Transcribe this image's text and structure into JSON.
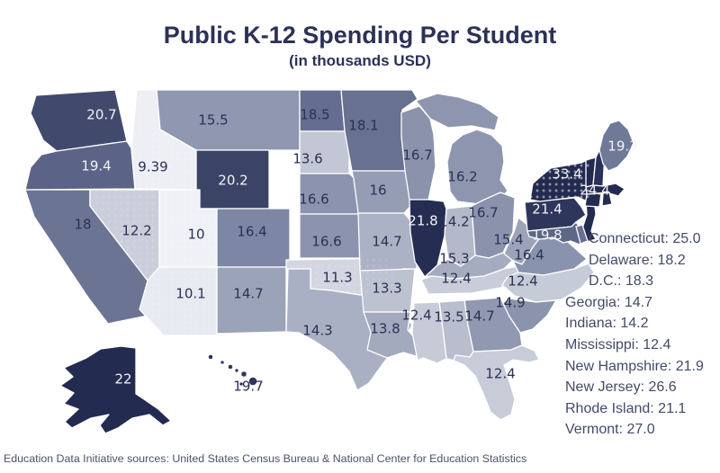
{
  "title": "Public K-12 Spending Per Student",
  "subtitle": "(in thousands USD)",
  "source": "Education Data Initiative sources: United States Census Bureau & National Center for Education Statistics",
  "colors": {
    "background": "#ffffff",
    "title_text": "#2c3157",
    "dark_label_text": "#2b3154",
    "light_label_text": "#f2f3f8",
    "list_text": "#434a69",
    "scale_low": "#edeff5",
    "scale_high": "#232a4f",
    "state_border": "#ffffff"
  },
  "chart_data": {
    "type": "choropleth",
    "title": "Public K-12 Spending Per Student",
    "subtitle": "(in thousands USD)",
    "unit": "thousands USD",
    "legend_position": "right-list for small states",
    "states": [
      {
        "abbr": "WA",
        "name": "Washington",
        "value": 20.7,
        "text": "20.7",
        "fill": "#414a6c",
        "text_fill": "#f2f3f8"
      },
      {
        "abbr": "OR",
        "name": "Oregon",
        "value": 19.4,
        "text": "19.4",
        "fill": "#5b6486",
        "text_fill": "#f2f3f8"
      },
      {
        "abbr": "CA",
        "name": "California",
        "value": 18,
        "text": "18",
        "fill": "#6b7492",
        "text_fill": "#2b3154"
      },
      {
        "abbr": "ID",
        "name": "Idaho",
        "value": 9.39,
        "text": "9.39",
        "fill": "#edeff5",
        "text_fill": "#2b3154"
      },
      {
        "abbr": "NV",
        "name": "Nevada",
        "value": 12.2,
        "text": "12.2",
        "fill": "#cacedb",
        "text_fill": "#2b3154"
      },
      {
        "abbr": "UT",
        "name": "Utah",
        "value": 10,
        "text": "10",
        "fill": "#eff1f6",
        "text_fill": "#2b3154"
      },
      {
        "abbr": "AZ",
        "name": "Arizona",
        "value": 10.1,
        "text": "10.1",
        "fill": "#e8eaf1",
        "text_fill": "#2b3154"
      },
      {
        "abbr": "MT",
        "name": "Montana",
        "value": 15.5,
        "text": "15.5",
        "fill": "#8f97b1",
        "text_fill": "#2b3154"
      },
      {
        "abbr": "WY",
        "name": "Wyoming",
        "value": 20.2,
        "text": "20.2",
        "fill": "#3b4467",
        "text_fill": "#f2f3f8"
      },
      {
        "abbr": "CO",
        "name": "Colorado",
        "value": 16.4,
        "text": "16.4",
        "fill": "#7d86a4",
        "text_fill": "#2b3154"
      },
      {
        "abbr": "NM",
        "name": "New Mexico",
        "value": 14.7,
        "text": "14.7",
        "fill": "#9ba3b9",
        "text_fill": "#2b3154"
      },
      {
        "abbr": "ND",
        "name": "North Dakota",
        "value": 18.5,
        "text": "18.5",
        "fill": "#656e90",
        "text_fill": "#2b3154"
      },
      {
        "abbr": "SD",
        "name": "South Dakota",
        "value": 13.6,
        "text": "13.6",
        "fill": "#c3c7d5",
        "text_fill": "#2b3154"
      },
      {
        "abbr": "NE",
        "name": "Nebraska",
        "value": 16.6,
        "text": "16.6",
        "fill": "#8b93ae",
        "text_fill": "#2b3154"
      },
      {
        "abbr": "KS",
        "name": "Kansas",
        "value": 16.6,
        "text": "16.6",
        "fill": "#8b93ae",
        "text_fill": "#2b3154"
      },
      {
        "abbr": "OK",
        "name": "Oklahoma",
        "value": 11.3,
        "text": "11.3",
        "fill": "#d3d6e1",
        "text_fill": "#2b3154"
      },
      {
        "abbr": "TX",
        "name": "Texas",
        "value": 14.3,
        "text": "14.3",
        "fill": "#aab0c3",
        "text_fill": "#2b3154"
      },
      {
        "abbr": "MN",
        "name": "Minnesota",
        "value": 18.1,
        "text": "18.1",
        "fill": "#68718f",
        "text_fill": "#2b3154"
      },
      {
        "abbr": "IA",
        "name": "Iowa",
        "value": 16,
        "text": "16",
        "fill": "#959db5",
        "text_fill": "#2b3154"
      },
      {
        "abbr": "MO",
        "name": "Missouri",
        "value": 14.7,
        "text": "14.7",
        "fill": "#acb2c5",
        "text_fill": "#2b3154"
      },
      {
        "abbr": "AR",
        "name": "Arkansas",
        "value": 13.3,
        "text": "13.3",
        "fill": "#bdc2d1",
        "text_fill": "#2b3154"
      },
      {
        "abbr": "LA",
        "name": "Louisiana",
        "value": 13.8,
        "text": "13.8",
        "fill": "#a3aabe",
        "text_fill": "#2b3154"
      },
      {
        "abbr": "WI",
        "name": "Wisconsin",
        "value": 16.7,
        "text": "16.7",
        "fill": "#8a92ac",
        "text_fill": "#2b3154"
      },
      {
        "abbr": "IL",
        "name": "Illinois",
        "value": 21.8,
        "text": "21.8",
        "fill": "#252d52",
        "text_fill": "#f2f3f8"
      },
      {
        "abbr": "MI",
        "name": "Michigan",
        "value": 16.2,
        "text": "16.2",
        "fill": "#8e96af",
        "text_fill": "#2b3154"
      },
      {
        "abbr": "IN",
        "name": "Indiana",
        "value": 14.2,
        "text": "14.2",
        "fill": "#b4b9c9",
        "text_fill": "#2b3154"
      },
      {
        "abbr": "OH",
        "name": "Ohio",
        "value": 16.7,
        "text": "16.7",
        "fill": "#8a92ac",
        "text_fill": "#2b3154"
      },
      {
        "abbr": "KY",
        "name": "Kentucky",
        "value": 15.3,
        "text": "15.3",
        "fill": "#a6acc0",
        "text_fill": "#2b3154"
      },
      {
        "abbr": "TN",
        "name": "Tennessee",
        "value": 12.4,
        "text": "12.4",
        "fill": "#c9cdd9",
        "text_fill": "#2b3154"
      },
      {
        "abbr": "WV",
        "name": "West Virginia",
        "value": 15.4,
        "text": "15.4",
        "fill": "#9ca3b9",
        "text_fill": "#2b3154"
      },
      {
        "abbr": "VA",
        "name": "Virginia",
        "value": 16.4,
        "text": "16.4",
        "fill": "#8a93ad",
        "text_fill": "#2b3154"
      },
      {
        "abbr": "NC",
        "name": "North Carolina",
        "value": 12.4,
        "text": "12.4",
        "fill": "#c6cbd8",
        "text_fill": "#2b3154"
      },
      {
        "abbr": "SC",
        "name": "South Carolina",
        "value": 14.9,
        "text": "14.9",
        "fill": "#8b93ad",
        "text_fill": "#2b3154"
      },
      {
        "abbr": "GA",
        "name": "Georgia",
        "value": 14.7,
        "text": "14.7",
        "fill": "#9099b1",
        "text_fill": "#2b3154"
      },
      {
        "abbr": "AL",
        "name": "Alabama",
        "value": 13.5,
        "text": "13.5",
        "fill": "#b9bece",
        "text_fill": "#2b3154"
      },
      {
        "abbr": "MS",
        "name": "Mississippi",
        "value": 12.4,
        "text": "12.4",
        "fill": "#c7cbd8",
        "text_fill": "#2b3154"
      },
      {
        "abbr": "FL",
        "name": "Florida",
        "value": 12.4,
        "text": "12.4",
        "fill": "#c8ccd9",
        "text_fill": "#2b3154"
      },
      {
        "abbr": "PA",
        "name": "Pennsylvania",
        "value": 21.4,
        "text": "21.4",
        "fill": "#2e365b",
        "text_fill": "#f2f3f8"
      },
      {
        "abbr": "NY",
        "name": "New York",
        "value": 33.4,
        "text": "33.4",
        "fill": "#232a4f",
        "text_fill": "#f2f3f8"
      },
      {
        "abbr": "MD",
        "name": "Maryland",
        "value": 19.8,
        "text": "19.8",
        "fill": "#5d6787",
        "text_fill": "#f2f3f8"
      },
      {
        "abbr": "DE",
        "name": "Delaware",
        "value": 18.2,
        "fill": "#687191"
      },
      {
        "abbr": "DC",
        "name": "D.C.",
        "value": 18.3
      },
      {
        "abbr": "NJ",
        "name": "New Jersey",
        "value": 26.6,
        "fill": "#242b50"
      },
      {
        "abbr": "CT",
        "name": "Connecticut",
        "value": 25.0,
        "fill": "#242b50"
      },
      {
        "abbr": "RI",
        "name": "Rhode Island",
        "value": 21.1,
        "fill": "#242b50"
      },
      {
        "abbr": "MA",
        "name": "Massachusetts",
        "value": 24.4,
        "text": "24.4",
        "fill": "#242b50",
        "text_fill": "#f2f3f8"
      },
      {
        "abbr": "VT",
        "name": "Vermont",
        "value": 27.0,
        "fill": "#232a4f"
      },
      {
        "abbr": "NH",
        "name": "New Hampshire",
        "value": 21.9,
        "fill": "#2a3158"
      },
      {
        "abbr": "ME",
        "name": "Maine",
        "value": 19.3,
        "text": "19.3",
        "fill": "#6f7998",
        "text_fill": "#f2f3f8"
      },
      {
        "abbr": "AK",
        "name": "Alaska",
        "value": 22,
        "text": "22",
        "fill": "#242b50",
        "text_fill": "#f2f3f8"
      },
      {
        "abbr": "HI",
        "name": "Hawaii",
        "value": 19.7,
        "text": "19.7",
        "fill": "#2d355c",
        "text_fill": "#2b3154"
      }
    ],
    "side_list": [
      {
        "name": "Connecticut",
        "value": 25.0,
        "label": "Connecticut: 25.0",
        "indent": true
      },
      {
        "name": "Delaware",
        "value": 18.2,
        "label": "Delaware: 18.2",
        "indent": true
      },
      {
        "name": "D.C.",
        "value": 18.3,
        "label": "D.C.: 18.3",
        "indent": true
      },
      {
        "name": "Georgia",
        "value": 14.7,
        "label": "Georgia: 14.7",
        "indent": false
      },
      {
        "name": "Indiana",
        "value": 14.2,
        "label": "Indiana: 14.2",
        "indent": false
      },
      {
        "name": "Mississippi",
        "value": 12.4,
        "label": "Mississippi: 12.4",
        "indent": false
      },
      {
        "name": "New Hampshire",
        "value": 21.9,
        "label": "New Hampshire: 21.9",
        "indent": false
      },
      {
        "name": "New Jersey",
        "value": 26.6,
        "label": "New Jersey: 26.6",
        "indent": false
      },
      {
        "name": "Rhode Island",
        "value": 21.1,
        "label": "Rhode Island: 21.1",
        "indent": false
      },
      {
        "name": "Vermont",
        "value": 27.0,
        "label": "Vermont: 27.0",
        "indent": false
      }
    ]
  }
}
